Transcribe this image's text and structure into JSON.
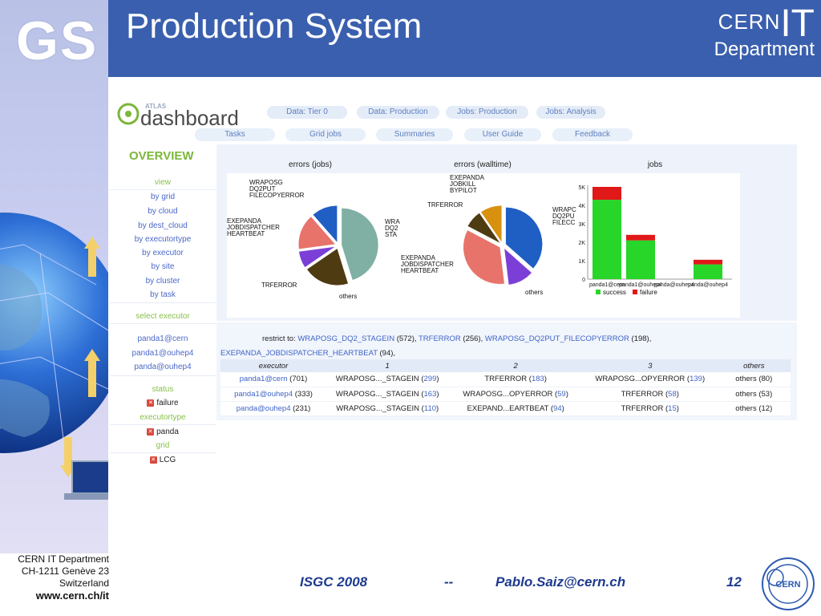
{
  "header": {
    "logo_text": "GS",
    "title": "Production System",
    "cern_text": "CERN",
    "it_text": "IT",
    "department_text": "Department"
  },
  "dashboard": {
    "logo_small": "ATLAS",
    "logo_text": "dashboard",
    "top_tabs": [
      "Data: Tier 0",
      "Data: Production",
      "Jobs: Production",
      "Jobs: Analysis"
    ],
    "second_tabs": [
      "Tasks",
      "Grid jobs",
      "Summaries",
      "User Guide",
      "Feedback"
    ],
    "overview": "OVERVIEW",
    "nav": {
      "view_label": "view",
      "view_items": [
        "by grid",
        "by cloud",
        "by dest_cloud",
        "by executortype",
        "by executor",
        "by site",
        "by cluster",
        "by task"
      ],
      "select_executor_label": "select executor",
      "executors": [
        "panda1@cern",
        "panda1@ouhep4",
        "panda@ouhep4"
      ],
      "status_label": "status",
      "status_value": "failure",
      "executortype_label": "executortype",
      "executortype_value": "panda",
      "grid_label": "grid",
      "grid_value": "LCG"
    },
    "charts": {
      "titles": [
        "errors (jobs)",
        "errors (walltime)",
        "jobs"
      ],
      "pie1_labels": [
        "WRAPOSG",
        "DQ2PUT",
        "FILECOPYERROR",
        "EXEPANDA",
        "JOBDISPATCHER",
        "HEARTBEAT",
        "TRFERROR",
        "others"
      ],
      "pie1_right_labels": [
        "WRA",
        "DQ2",
        "STA"
      ],
      "pie2_labels": [
        "EXEPANDA",
        "JOBKILL",
        "BYPILOT",
        "TRFERROR",
        "EXEPANDA",
        "JOBDISPATCHER",
        "HEARTBEAT",
        "others"
      ],
      "bar_left_labels": [
        "WRAPC",
        "DQ2PU",
        "FILECC"
      ],
      "legend": [
        "success",
        "failure"
      ]
    },
    "restrict": {
      "prefix": "restrict to:",
      "items": [
        {
          "name": "WRAPOSG_DQ2_STAGEIN",
          "count": "(572),"
        },
        {
          "name": "TRFERROR",
          "count": "(256),"
        },
        {
          "name": "WRAPOSG_DQ2PUT_FILECOPYERROR",
          "count": "(198),"
        },
        {
          "name": "EXEPANDA_JOBDISPATCHER_HEARTBEAT",
          "count": "(94),"
        }
      ]
    },
    "table": {
      "headers": [
        "executor",
        "1",
        "2",
        "3",
        "others"
      ],
      "rows": [
        {
          "executor": "panda1@cern",
          "total": "(701)",
          "c1": "WRAPOSG..._STAGEIN",
          "n1": "299",
          "c2": "TRFERROR",
          "n2": "183",
          "c3": "WRAPOSG...OPYERROR",
          "n3": "139",
          "others": "others (80)"
        },
        {
          "executor": "panda1@ouhep4",
          "total": "(333)",
          "c1": "WRAPOSG..._STAGEIN",
          "n1": "163",
          "c2": "WRAPOSG...OPYERROR",
          "n2": "59",
          "c3": "TRFERROR",
          "n3": "58",
          "others": "others (53)"
        },
        {
          "executor": "panda@ouhep4",
          "total": "(231)",
          "c1": "WRAPOSG..._STAGEIN",
          "n1": "110",
          "c2": "EXEPAND...EARTBEAT",
          "n2": "94",
          "c3": "TRFERROR",
          "n3": "15",
          "others": "others (12)"
        }
      ]
    }
  },
  "chart_data": [
    {
      "type": "pie",
      "title": "errors (jobs)",
      "labels": [
        "WRAPOSG_DQ2_STAGEIN",
        "TRFERROR",
        "EXEPANDA_JOBDISPATCHER_HEARTBEAT",
        "WRAPOSG_DQ2PUT_FILECOPYERROR",
        "others"
      ],
      "values": [
        572,
        256,
        94,
        198,
        145
      ],
      "colors": [
        "#7fb0a3",
        "#4e3b12",
        "#7b3fd8",
        "#e8736a",
        "#1f5fc4"
      ]
    },
    {
      "type": "pie",
      "title": "errors (walltime)",
      "labels": [
        "WRAPOSG_DQ2_STAGEIN",
        "others",
        "TRFERROR",
        "EXEPANDA_JOBDISPATCHER_HEARTBEAT",
        "EXEPANDA_JOBKILL_BYPILOT"
      ],
      "values": [
        38,
        12,
        36,
        8,
        10
      ],
      "colors": [
        "#1f5fc4",
        "#7b3fd8",
        "#e8736a",
        "#4e3b12",
        "#d8900f"
      ]
    },
    {
      "type": "bar",
      "title": "jobs",
      "categories": [
        "panda1@cern",
        "panda1@ouhep4",
        "panda@ouhep4",
        "panda@ouhep4"
      ],
      "series": [
        {
          "name": "success",
          "values": [
            4300,
            2100,
            0,
            800
          ]
        },
        {
          "name": "failure",
          "values": [
            700,
            300,
            0,
            250
          ]
        }
      ],
      "yticks": [
        "0",
        "1K",
        "2K",
        "3K",
        "4K",
        "5K"
      ],
      "ylim": [
        0,
        5000
      ],
      "colors": {
        "success": "#27d628",
        "failure": "#e01818"
      }
    }
  ],
  "footer": {
    "address_line1": "CERN IT Department",
    "address_line2": "CH-1211 Genève 23",
    "address_line3": "Switzerland",
    "url": "www.cern.ch/it",
    "conference": "ISGC 2008",
    "separator": "--",
    "email": "Pablo.Saiz@cern.ch",
    "page": "12",
    "cern_logo_text": "CERN"
  }
}
